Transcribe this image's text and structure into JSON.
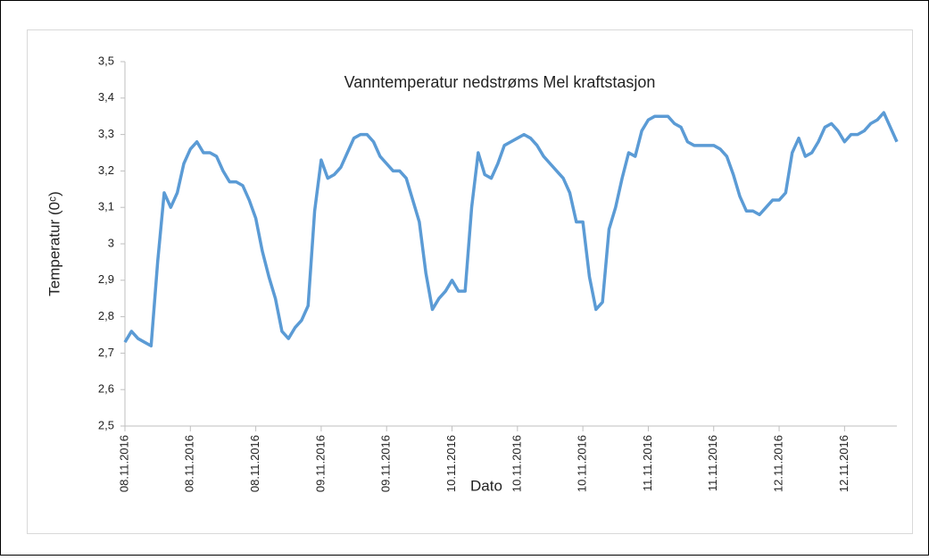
{
  "chart_data": {
    "type": "line",
    "title": "Vanntemperatur nedstrøms Mel kraftstasjon",
    "x_label": "Dato",
    "y_label": "Temperatur (0ᶜ)",
    "categories": [
      "08.11.2016",
      null,
      null,
      null,
      null,
      null,
      null,
      null,
      null,
      null,
      "08.11.2016",
      null,
      null,
      null,
      null,
      null,
      null,
      null,
      null,
      null,
      "08.11.2016",
      null,
      null,
      null,
      null,
      null,
      null,
      null,
      null,
      null,
      "09.11.2016",
      null,
      null,
      null,
      null,
      null,
      null,
      null,
      null,
      null,
      "09.11.2016",
      null,
      null,
      null,
      null,
      null,
      null,
      null,
      null,
      null,
      "10.11.2016",
      null,
      null,
      null,
      null,
      null,
      null,
      null,
      null,
      null,
      "10.11.2016",
      null,
      null,
      null,
      null,
      null,
      null,
      null,
      null,
      null,
      "10.11.2016",
      null,
      null,
      null,
      null,
      null,
      null,
      null,
      null,
      null,
      "11.11.2016",
      null,
      null,
      null,
      null,
      null,
      null,
      null,
      null,
      null,
      "11.11.2016",
      null,
      null,
      null,
      null,
      null,
      null,
      null,
      null,
      null,
      "12.11.2016",
      null,
      null,
      null,
      null,
      null,
      null,
      null,
      null,
      null,
      "12.11.2016",
      null,
      null,
      null,
      null,
      null,
      null,
      null,
      null
    ],
    "series": [
      {
        "name": "Vanntemperatur",
        "color": "#5b9bd5",
        "values": [
          2.73,
          2.76,
          2.74,
          2.73,
          2.72,
          2.95,
          3.14,
          3.1,
          3.14,
          3.22,
          3.26,
          3.28,
          3.25,
          3.25,
          3.24,
          3.2,
          3.17,
          3.17,
          3.16,
          3.12,
          3.07,
          2.98,
          2.91,
          2.85,
          2.76,
          2.74,
          2.77,
          2.79,
          2.83,
          3.09,
          3.23,
          3.18,
          3.19,
          3.21,
          3.25,
          3.29,
          3.3,
          3.3,
          3.28,
          3.24,
          3.22,
          3.2,
          3.2,
          3.18,
          3.12,
          3.06,
          2.92,
          2.82,
          2.85,
          2.87,
          2.9,
          2.87,
          2.87,
          3.1,
          3.25,
          3.19,
          3.18,
          3.22,
          3.27,
          3.28,
          3.29,
          3.3,
          3.29,
          3.27,
          3.24,
          3.22,
          3.2,
          3.18,
          3.14,
          3.06,
          3.06,
          2.91,
          2.82,
          2.84,
          3.04,
          3.1,
          3.18,
          3.25,
          3.24,
          3.31,
          3.34,
          3.35,
          3.35,
          3.35,
          3.33,
          3.32,
          3.28,
          3.27,
          3.27,
          3.27,
          3.27,
          3.26,
          3.24,
          3.19,
          3.13,
          3.09,
          3.09,
          3.08,
          3.1,
          3.12,
          3.12,
          3.14,
          3.25,
          3.29,
          3.24,
          3.25,
          3.28,
          3.32,
          3.33,
          3.31,
          3.28,
          3.3,
          3.3,
          3.31,
          3.33,
          3.34,
          3.36,
          3.32,
          3.28
        ]
      }
    ],
    "ylim": [
      2.5,
      3.5
    ],
    "yticks": [
      2.5,
      {
        "value": 2.5,
        "label": "2,5"
      },
      {
        "value": 2.6,
        "label": "2,6"
      },
      {
        "value": 2.7,
        "label": "2,7"
      },
      {
        "value": 2.8,
        "label": "2,8"
      },
      {
        "value": 2.9,
        "label": "2,9"
      },
      3,
      {
        "value": 3.1,
        "label": "3,1"
      },
      {
        "value": 3.2,
        "label": "3,2"
      },
      {
        "value": 3.3,
        "label": "3,3"
      },
      {
        "value": 3.4,
        "label": "3,4"
      },
      {
        "value": 3.5,
        "label": "3,5"
      }
    ],
    "grid": false
  }
}
